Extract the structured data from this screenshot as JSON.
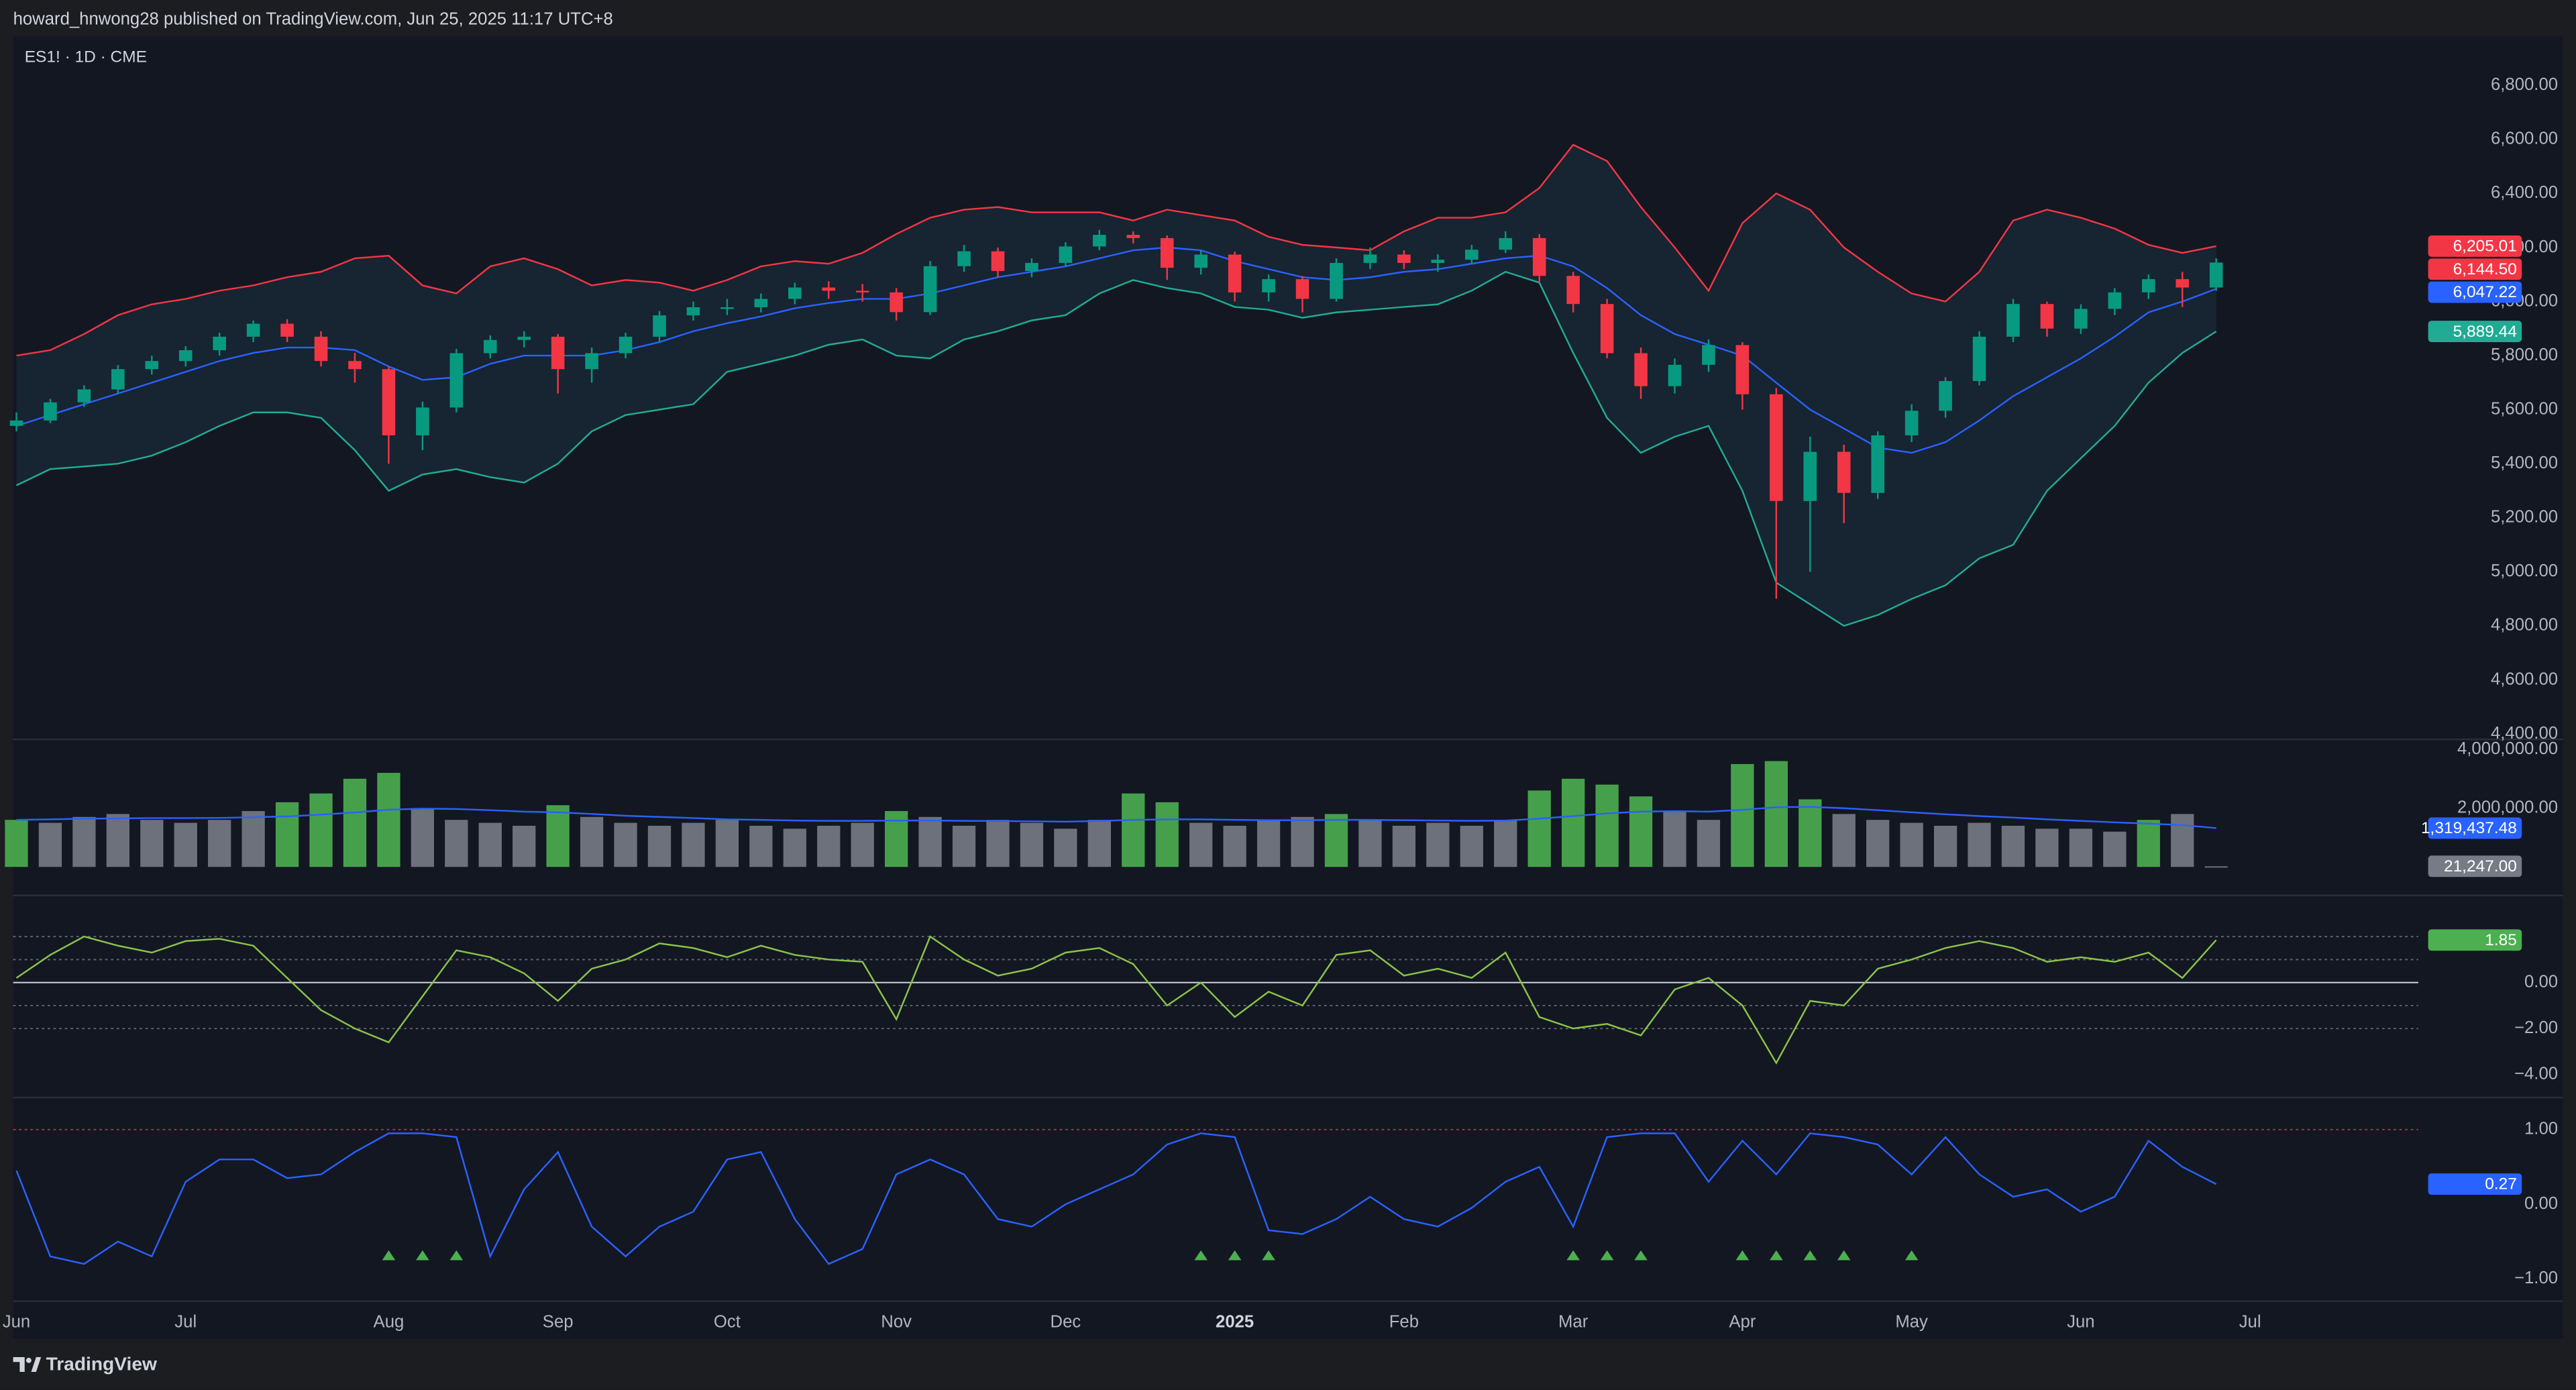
{
  "header": "howard_hnwong28 published on TradingView.com, Jun 25, 2025 11:17 UTC+8",
  "footer": "TradingView",
  "chart_data": [
    {
      "type": "candlestick",
      "title": "ES1! · 1D · CME",
      "categories": [
        "Jun",
        null,
        null,
        null,
        null,
        "Jul",
        null,
        null,
        null,
        null,
        null,
        "Aug",
        null,
        null,
        null,
        null,
        "Sep",
        null,
        null,
        null,
        null,
        "Oct",
        null,
        null,
        null,
        null,
        "Nov",
        null,
        null,
        null,
        null,
        "Dec",
        null,
        null,
        null,
        null,
        "2025",
        null,
        null,
        null,
        null,
        "Feb",
        null,
        null,
        null,
        null,
        "Mar",
        null,
        null,
        null,
        null,
        "Apr",
        null,
        null,
        null,
        null,
        "May",
        null,
        null,
        null,
        null,
        "Jun",
        null,
        null,
        null,
        null,
        "Jul"
      ],
      "open": [
        5540,
        5560,
        5627,
        5675,
        5750,
        5780,
        5820,
        5870,
        5918,
        5870,
        5780,
        5750,
        5505,
        5608,
        5809,
        5858,
        5870,
        5750,
        5809,
        5870,
        5949,
        5979,
        5979,
        6010,
        6052,
        6040,
        6034,
        5961,
        6131,
        6186,
        6113,
        6143,
        6204,
        6247,
        6235,
        6125,
        6174,
        6034,
        6083,
        6010,
        6143,
        6174,
        6143,
        6155,
        6192,
        6235,
        6095,
        5991,
        5809,
        5687,
        5766,
        5839,
        5657,
        5262,
        5444,
        5292,
        5505,
        5596,
        5706,
        5870,
        5991,
        5900,
        5973,
        6034,
        6083,
        6052,
        null
      ],
      "high": [
        5590,
        5640,
        5690,
        5765,
        5800,
        5835,
        5885,
        5930,
        5935,
        5890,
        5810,
        5760,
        5630,
        5825,
        5875,
        5890,
        5880,
        5830,
        5885,
        5965,
        6000,
        6010,
        6030,
        6070,
        6075,
        6065,
        6050,
        6150,
        6210,
        6200,
        6160,
        6220,
        6265,
        6260,
        6245,
        6190,
        6185,
        6100,
        6095,
        6160,
        6200,
        6190,
        6175,
        6210,
        6260,
        6250,
        6110,
        6010,
        5830,
        5790,
        5860,
        5850,
        5680,
        5500,
        5470,
        5520,
        5620,
        5720,
        5890,
        6010,
        6000,
        5990,
        6050,
        6100,
        6110,
        6160,
        null
      ],
      "low": [
        5520,
        5550,
        5610,
        5660,
        5730,
        5760,
        5800,
        5850,
        5850,
        5760,
        5700,
        5400,
        5450,
        5590,
        5790,
        5830,
        5660,
        5700,
        5790,
        5850,
        5930,
        5950,
        5960,
        5990,
        6010,
        6000,
        5930,
        5950,
        6110,
        6090,
        6090,
        6130,
        6190,
        6215,
        6080,
        6100,
        6000,
        6000,
        5960,
        6000,
        6120,
        6120,
        6110,
        6140,
        6180,
        6070,
        5960,
        5790,
        5640,
        5660,
        5740,
        5600,
        4900,
        5000,
        5180,
        5270,
        5480,
        5570,
        5690,
        5850,
        5870,
        5880,
        5950,
        6010,
        5980,
        6040,
        null
      ],
      "close": [
        5560,
        5627,
        5675,
        5750,
        5780,
        5820,
        5870,
        5918,
        5870,
        5780,
        5750,
        5505,
        5608,
        5809,
        5858,
        5870,
        5750,
        5809,
        5870,
        5949,
        5979,
        5979,
        6010,
        6052,
        6040,
        6034,
        5961,
        6131,
        6186,
        6113,
        6143,
        6204,
        6247,
        6235,
        6125,
        6174,
        6034,
        6083,
        6010,
        6143,
        6174,
        6143,
        6155,
        6192,
        6235,
        6095,
        5991,
        5809,
        5687,
        5766,
        5839,
        5657,
        5262,
        5444,
        5292,
        5505,
        5596,
        5706,
        5870,
        5991,
        5900,
        5973,
        6034,
        6083,
        6052,
        6144.5,
        null
      ],
      "up_color": "#089981",
      "down_color": "#f23645",
      "last_label": "6,144.50",
      "last_label_color": "#f23645",
      "overlays": [
        {
          "color": "#f23645",
          "last_label": "6,205.01",
          "values": [
            5800,
            5820,
            5880,
            5950,
            5990,
            6010,
            6040,
            6060,
            6090,
            6110,
            6160,
            6170,
            6060,
            6030,
            6130,
            6160,
            6120,
            6060,
            6080,
            6070,
            6040,
            6080,
            6130,
            6150,
            6140,
            6180,
            6250,
            6310,
            6340,
            6350,
            6330,
            6330,
            6330,
            6300,
            6340,
            6320,
            6300,
            6240,
            6210,
            6200,
            6190,
            6260,
            6310,
            6310,
            6330,
            6420,
            6580,
            6520,
            6350,
            6200,
            6040,
            6290,
            6400,
            6340,
            6200,
            6110,
            6030,
            6000,
            6110,
            6300,
            6340,
            6310,
            6270,
            6210,
            6180,
            6205.01,
            null
          ]
        },
        {
          "color": "#2962ff",
          "last_label": "6,047.22",
          "values": [
            5540,
            5580,
            5620,
            5660,
            5700,
            5740,
            5780,
            5810,
            5830,
            5830,
            5820,
            5760,
            5710,
            5720,
            5770,
            5800,
            5800,
            5800,
            5820,
            5850,
            5890,
            5920,
            5945,
            5975,
            5995,
            6010,
            6010,
            6030,
            6060,
            6090,
            6110,
            6130,
            6160,
            6190,
            6200,
            6190,
            6150,
            6120,
            6090,
            6080,
            6090,
            6110,
            6120,
            6140,
            6160,
            6170,
            6130,
            6050,
            5950,
            5880,
            5840,
            5800,
            5700,
            5600,
            5530,
            5460,
            5440,
            5480,
            5560,
            5650,
            5720,
            5790,
            5870,
            5960,
            6000,
            6047.22,
            null
          ]
        },
        {
          "color": "#22ab94",
          "last_label": "5,889.44",
          "values": [
            5320,
            5380,
            5390,
            5400,
            5430,
            5480,
            5540,
            5590,
            5590,
            5570,
            5450,
            5300,
            5360,
            5380,
            5350,
            5330,
            5400,
            5520,
            5580,
            5600,
            5620,
            5740,
            5770,
            5800,
            5840,
            5860,
            5800,
            5790,
            5860,
            5890,
            5930,
            5950,
            6030,
            6080,
            6050,
            6030,
            5980,
            5970,
            5940,
            5960,
            5970,
            5980,
            5990,
            6040,
            6110,
            6070,
            5810,
            5570,
            5440,
            5500,
            5540,
            5300,
            4960,
            4880,
            4800,
            4840,
            4900,
            4950,
            5050,
            5100,
            5300,
            5420,
            5540,
            5700,
            5810,
            5889.44,
            null
          ]
        }
      ],
      "ylim": [
        4380,
        6982
      ],
      "yticks": [
        {
          "value": 6800,
          "label": "6,800.00"
        },
        {
          "value": 6600,
          "label": "6,600.00"
        },
        {
          "value": 6400,
          "label": "6,400.00"
        },
        {
          "value": 6200,
          "label": "6,200.00"
        },
        {
          "value": 6000,
          "label": "6,000.00"
        },
        {
          "value": 5800,
          "label": "5,800.00"
        },
        {
          "value": 5600,
          "label": "5,600.00"
        },
        {
          "value": 5400,
          "label": "5,400.00"
        },
        {
          "value": 5200,
          "label": "5,200.00"
        },
        {
          "value": 5000,
          "label": "5,000.00"
        },
        {
          "value": 4800,
          "label": "4,800.00"
        },
        {
          "value": 4600,
          "label": "4,600.00"
        },
        {
          "value": 4400,
          "label": "4,400.00"
        }
      ]
    },
    {
      "type": "bar",
      "values": [
        1600000,
        1500000,
        1700000,
        1800000,
        1600000,
        1500000,
        1600000,
        1900000,
        2200000,
        2500000,
        3000000,
        3200000,
        2000000,
        1600000,
        1500000,
        1400000,
        2100000,
        1700000,
        1500000,
        1400000,
        1500000,
        1600000,
        1400000,
        1300000,
        1400000,
        1500000,
        1900000,
        1700000,
        1400000,
        1600000,
        1500000,
        1300000,
        1600000,
        2500000,
        2200000,
        1500000,
        1400000,
        1600000,
        1700000,
        1800000,
        1600000,
        1400000,
        1500000,
        1400000,
        1600000,
        2600000,
        3000000,
        2800000,
        2400000,
        1900000,
        1600000,
        3500000,
        3600000,
        2300000,
        1800000,
        1600000,
        1500000,
        1400000,
        1500000,
        1400000,
        1300000,
        1300000,
        1200000,
        1600000,
        1800000,
        21247,
        null
      ],
      "colors": [
        "#4caf50",
        "#787b86",
        "#787b86",
        "#787b86",
        "#787b86",
        "#787b86",
        "#787b86",
        "#787b86",
        "#4caf50",
        "#4caf50",
        "#4caf50",
        "#4caf50",
        "#787b86",
        "#787b86",
        "#787b86",
        "#787b86",
        "#4caf50",
        "#787b86",
        "#787b86",
        "#787b86",
        "#787b86",
        "#787b86",
        "#787b86",
        "#787b86",
        "#787b86",
        "#787b86",
        "#4caf50",
        "#787b86",
        "#787b86",
        "#787b86",
        "#787b86",
        "#787b86",
        "#787b86",
        "#4caf50",
        "#4caf50",
        "#787b86",
        "#787b86",
        "#787b86",
        "#787b86",
        "#4caf50",
        "#787b86",
        "#787b86",
        "#787b86",
        "#787b86",
        "#787b86",
        "#4caf50",
        "#4caf50",
        "#4caf50",
        "#4caf50",
        "#787b86",
        "#787b86",
        "#4caf50",
        "#4caf50",
        "#4caf50",
        "#787b86",
        "#787b86",
        "#787b86",
        "#787b86",
        "#787b86",
        "#787b86",
        "#787b86",
        "#787b86",
        "#787b86",
        "#4caf50",
        "#787b86",
        "#787b86",
        null
      ],
      "last_label": "21,247.00",
      "last_label_color": "#787b86",
      "overlays": [
        {
          "color": "#2962ff",
          "last_label": "1,319,437.48",
          "values": [
            1600000,
            1620000,
            1640000,
            1650000,
            1660000,
            1660000,
            1670000,
            1690000,
            1720000,
            1780000,
            1850000,
            1950000,
            1980000,
            1970000,
            1930000,
            1880000,
            1860000,
            1800000,
            1740000,
            1700000,
            1660000,
            1620000,
            1600000,
            1580000,
            1570000,
            1570000,
            1580000,
            1580000,
            1570000,
            1560000,
            1550000,
            1540000,
            1560000,
            1600000,
            1620000,
            1620000,
            1600000,
            1590000,
            1590000,
            1600000,
            1600000,
            1590000,
            1580000,
            1570000,
            1580000,
            1640000,
            1730000,
            1820000,
            1880000,
            1900000,
            1880000,
            1940000,
            2030000,
            2040000,
            2000000,
            1930000,
            1860000,
            1790000,
            1730000,
            1680000,
            1620000,
            1570000,
            1520000,
            1470000,
            1420000,
            1319437.48,
            null
          ]
        }
      ],
      "ylim": [
        -970000,
        4340000
      ],
      "yticks": [
        {
          "value": 4000000,
          "label": "4,000,000.00"
        },
        {
          "value": 2000000,
          "label": "2,000,000.00"
        }
      ]
    },
    {
      "type": "line",
      "color": "#8bc34a",
      "values": [
        0.2,
        1.2,
        2.0,
        1.6,
        1.3,
        1.8,
        1.9,
        1.6,
        0.2,
        -1.2,
        -2.0,
        -2.6,
        -0.6,
        1.4,
        1.1,
        0.4,
        -0.8,
        0.6,
        1.0,
        1.7,
        1.5,
        1.1,
        1.6,
        1.2,
        1.0,
        0.9,
        -1.6,
        2.0,
        1.0,
        0.3,
        0.6,
        1.3,
        1.5,
        0.8,
        -1.0,
        0.0,
        -1.5,
        -0.4,
        -1.0,
        1.2,
        1.4,
        0.3,
        0.6,
        0.2,
        1.3,
        -1.5,
        -2.0,
        -1.8,
        -2.3,
        -0.3,
        0.2,
        -1.0,
        -3.5,
        -0.8,
        -1.0,
        0.6,
        1.0,
        1.5,
        1.8,
        1.5,
        0.9,
        1.1,
        0.9,
        1.3,
        0.2,
        1.85,
        null
      ],
      "last_label": "1.85",
      "last_label_color": "#4caf50",
      "hlines": [
        2,
        1,
        -1,
        -2
      ],
      "baseline": 0,
      "ylim": [
        -5,
        3.79
      ],
      "yticks": [
        {
          "value": 0,
          "label": "0.00"
        },
        {
          "value": -2,
          "label": "−2.00"
        },
        {
          "value": -4,
          "label": "−4.00"
        }
      ]
    },
    {
      "type": "line",
      "color": "#2962ff",
      "values": [
        0.45,
        -0.7,
        -0.8,
        -0.5,
        -0.7,
        0.3,
        0.6,
        0.6,
        0.35,
        0.4,
        0.7,
        0.95,
        0.95,
        0.9,
        -0.7,
        0.2,
        0.7,
        -0.3,
        -0.7,
        -0.3,
        -0.1,
        0.6,
        0.7,
        -0.2,
        -0.8,
        -0.6,
        0.4,
        0.6,
        0.4,
        -0.2,
        -0.3,
        0.0,
        0.2,
        0.4,
        0.8,
        0.95,
        0.9,
        -0.35,
        -0.4,
        -0.2,
        0.1,
        -0.2,
        -0.3,
        -0.05,
        0.3,
        0.5,
        -0.3,
        0.9,
        0.95,
        0.95,
        0.3,
        0.85,
        0.4,
        0.95,
        0.9,
        0.8,
        0.4,
        0.9,
        0.4,
        0.1,
        0.2,
        -0.1,
        0.1,
        0.85,
        0.5,
        0.27,
        null
      ],
      "last_label": "0.27",
      "last_label_color": "#2962ff",
      "hlines": [
        1
      ],
      "hline_color": "#f23645",
      "signals": [
        11,
        12,
        13,
        35,
        36,
        37,
        46,
        47,
        48,
        51,
        52,
        53,
        54,
        56
      ],
      "signal_color": "#4caf50",
      "ylim": [
        -1.3,
        1.43
      ],
      "yticks": [
        {
          "value": 1,
          "label": "1.00"
        },
        {
          "value": 0,
          "label": "0.00"
        },
        {
          "value": -1,
          "label": "−1.00"
        }
      ]
    }
  ]
}
